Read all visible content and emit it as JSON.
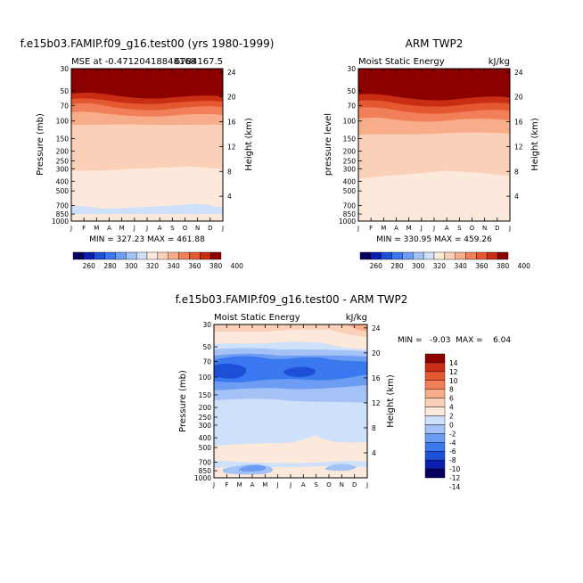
{
  "chart_data": [
    {
      "type": "heatmap",
      "title": "f.e15b03.FAMIP.f09_g16.test00 (yrs 1980-1999)",
      "subtitle_left": "MSE at -0.47120418848168",
      "subtitle_right": "6784167.5",
      "ylabel": "Pressure (mb)",
      "y2label": "Height (km)",
      "x_ticks": [
        "J",
        "F",
        "M",
        "A",
        "M",
        "J",
        "J",
        "A",
        "S",
        "O",
        "N",
        "D",
        "J"
      ],
      "y_ticks": [
        "30",
        "50",
        "70",
        "100",
        "150",
        "200",
        "250",
        "300",
        "400",
        "500",
        "700",
        "850",
        "1000"
      ],
      "y2_ticks": [
        "24",
        "20",
        "16",
        "12",
        "8",
        "4"
      ],
      "minmax_text": "MIN = 327.23  MAX = 461.88",
      "min": 327.23,
      "max": 461.88,
      "colorbar_labels": [
        "260",
        "280",
        "300",
        "320",
        "340",
        "360",
        "380",
        "400"
      ]
    },
    {
      "type": "heatmap",
      "title": "ARM TWP2",
      "subtitle_left": "Moist Static Energy",
      "subtitle_right": "kJ/kg",
      "ylabel": "pressure level",
      "y2label": "Height (km)",
      "x_ticks": [
        "J",
        "F",
        "M",
        "A",
        "M",
        "J",
        "J",
        "A",
        "S",
        "O",
        "N",
        "D",
        "J"
      ],
      "y_ticks": [
        "30",
        "50",
        "70",
        "100",
        "150",
        "200",
        "250",
        "300",
        "400",
        "500",
        "700",
        "850",
        "1000"
      ],
      "y2_ticks": [
        "24",
        "20",
        "16",
        "12",
        "8",
        "4"
      ],
      "minmax_text": "MIN = 330.95  MAX = 459.26",
      "min": 330.95,
      "max": 459.26,
      "colorbar_labels": [
        "260",
        "280",
        "300",
        "320",
        "340",
        "360",
        "380",
        "400"
      ]
    },
    {
      "type": "heatmap",
      "title": "f.e15b03.FAMIP.f09_g16.test00 - ARM TWP2",
      "subtitle_left": "Moist Static Energy",
      "subtitle_right": "kJ/kg",
      "ylabel": "Pressure (mb)",
      "y2label": "Height (km)",
      "x_ticks": [
        "J",
        "F",
        "M",
        "A",
        "M",
        "J",
        "J",
        "A",
        "S",
        "O",
        "N",
        "D",
        "J"
      ],
      "y_ticks": [
        "30",
        "50",
        "70",
        "100",
        "150",
        "200",
        "250",
        "300",
        "400",
        "500",
        "700",
        "850",
        "1000"
      ],
      "y2_ticks": [
        "24",
        "20",
        "16",
        "12",
        "8",
        "4"
      ],
      "minmax_text": "MIN =   -9.03  MAX =    6.04",
      "min": -9.03,
      "max": 6.04,
      "colorbar_labels": [
        "14",
        "12",
        "10",
        "8",
        "6",
        "4",
        "2",
        "0",
        "-2",
        "-4",
        "-6",
        "-8",
        "-10",
        "-12",
        "-14"
      ]
    }
  ],
  "colors": {
    "abs_levels": [
      "#07005e",
      "#0a1fb0",
      "#1e4fd8",
      "#3a78f0",
      "#6d9cf3",
      "#a4c2f6",
      "#cfe1fa",
      "#fde9dc",
      "#fbd0b8",
      "#f7ac8a",
      "#f1805a",
      "#e45831",
      "#c92d13",
      "#8c0000"
    ],
    "diff_levels": [
      "#07005e",
      "#0a1fb0",
      "#1e4fd8",
      "#3a78f0",
      "#6d9cf3",
      "#a4c2f6",
      "#cfe1fa",
      "#fde9dc",
      "#fbd0b8",
      "#f7ac8a",
      "#f1805a",
      "#e45831",
      "#c92d13",
      "#8c0000"
    ]
  }
}
